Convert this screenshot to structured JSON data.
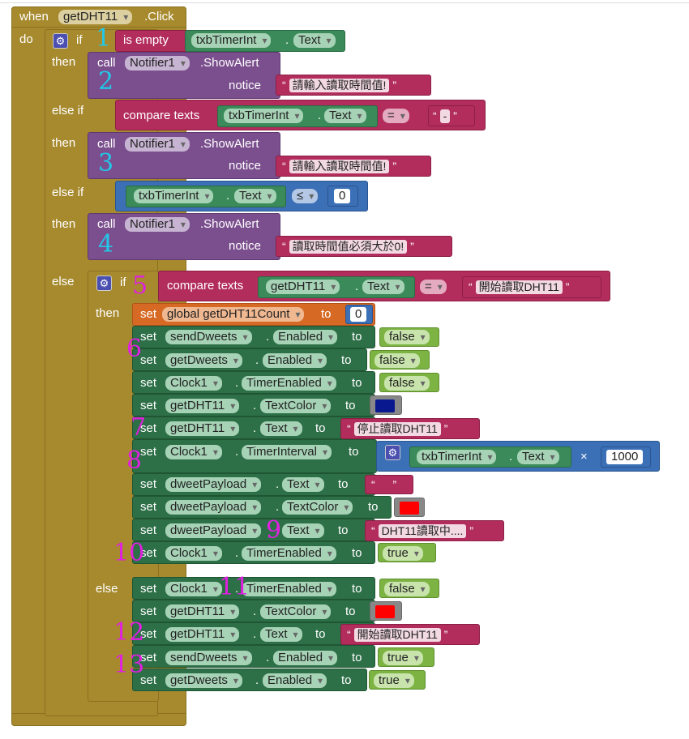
{
  "event": {
    "when": "when",
    "component": "getDHT11",
    "event_name": ".Click",
    "do": "do"
  },
  "kw": {
    "if": "if",
    "then": "then",
    "else_if": "else if",
    "else": "else",
    "set": "set",
    "to": "to",
    "call": "call",
    "notice": "notice",
    "is_empty": "is empty",
    "compare_texts": "compare texts",
    "show_alert": ".ShowAlert",
    "dot": ".",
    "times": "×"
  },
  "cond1": {
    "component": "txbTimerInt",
    "prop": "Text"
  },
  "alert1": {
    "component": "Notifier1",
    "text": "請輸入讀取時間值!"
  },
  "cond2": {
    "component": "txbTimerInt",
    "prop": "Text",
    "op": "=",
    "value": "-"
  },
  "alert2": {
    "component": "Notifier1",
    "text": "請輸入讀取時間值!"
  },
  "cond3": {
    "component": "txbTimerInt",
    "prop": "Text",
    "op": "≤",
    "value": "0"
  },
  "alert3": {
    "component": "Notifier1",
    "text": "讀取時間值必須大於0!"
  },
  "cond5": {
    "component": "getDHT11",
    "prop": "Text",
    "op": "=",
    "value": "開始讀取DHT11"
  },
  "then_sets": [
    {
      "target": "global getDHT11Count",
      "value": "0"
    },
    {
      "component": "sendDweets",
      "prop": "Enabled",
      "value": "false"
    },
    {
      "component": "getDweets",
      "prop": "Enabled",
      "value": "false"
    },
    {
      "component": "Clock1",
      "prop": "TimerEnabled",
      "value": "false"
    },
    {
      "component": "getDHT11",
      "prop": "TextColor",
      "color": "#0a1890"
    },
    {
      "component": "getDHT11",
      "prop": "Text",
      "value": "停止讀取DHT11"
    },
    {
      "component": "Clock1",
      "prop": "TimerInterval",
      "expr_component": "txbTimerInt",
      "expr_prop": "Text",
      "factor": "1000"
    },
    {
      "component": "dweetPayload",
      "prop": "Text",
      "value": ""
    },
    {
      "component": "dweetPayload",
      "prop": "TextColor",
      "color": "#ff0000"
    },
    {
      "component": "dweetPayload",
      "prop": "Text",
      "value": "DHT11讀取中...."
    },
    {
      "component": "Clock1",
      "prop": "TimerEnabled",
      "value": "true"
    }
  ],
  "else_sets": [
    {
      "component": "Clock1",
      "prop": "TimerEnabled",
      "value": "false"
    },
    {
      "component": "getDHT11",
      "prop": "TextColor",
      "color": "#ff0000"
    },
    {
      "component": "getDHT11",
      "prop": "Text",
      "value": "開始讀取DHT11"
    },
    {
      "component": "sendDweets",
      "prop": "Enabled",
      "value": "true"
    },
    {
      "component": "getDweets",
      "prop": "Enabled",
      "value": "true"
    }
  ],
  "annotations": [
    "1",
    "2",
    "3",
    "4",
    "5",
    "6",
    "7",
    "8",
    "9",
    "10",
    "11",
    "12",
    "13"
  ],
  "colors": {
    "event": "#a78a2e",
    "procedure": "#7b4f8e",
    "text": "#b22d5c",
    "component": "#3a8a5a",
    "setter": "#2d6f47",
    "math": "#3b6fb6",
    "variable": "#d66a24",
    "logic": "#7cb342"
  }
}
